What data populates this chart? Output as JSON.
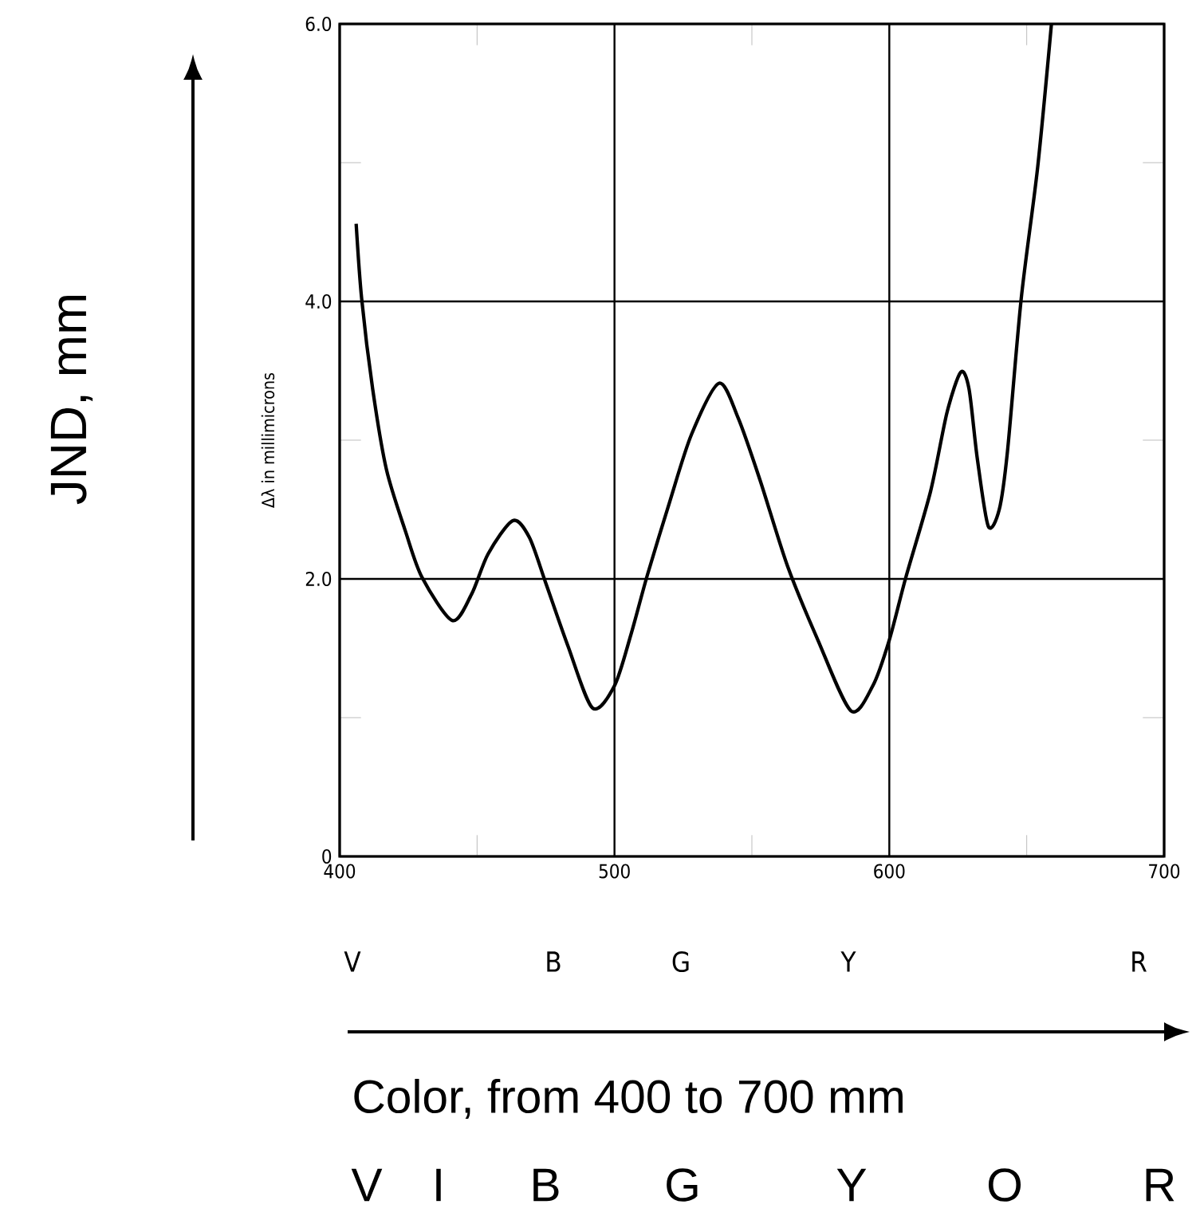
{
  "chart_data": {
    "type": "line",
    "ylabel": "Δλ in millimicrons",
    "x": [
      406,
      408,
      412,
      417,
      424,
      430,
      441,
      448,
      454,
      463,
      469,
      475,
      483,
      492,
      500,
      506,
      512,
      520,
      528,
      538,
      545,
      553,
      563,
      574,
      586,
      594,
      600,
      606,
      615,
      621,
      626,
      629,
      632,
      636,
      640,
      643,
      648,
      654,
      659
    ],
    "series": [
      {
        "color": "#000000",
        "values": [
          4.56,
          4.02,
          3.37,
          2.79,
          2.34,
          2.01,
          1.7,
          1.89,
          2.18,
          2.42,
          2.3,
          1.97,
          1.52,
          1.07,
          1.23,
          1.6,
          2.03,
          2.55,
          3.04,
          3.41,
          3.16,
          2.71,
          2.09,
          1.56,
          1.05,
          1.23,
          1.56,
          2.01,
          2.63,
          3.2,
          3.49,
          3.37,
          2.87,
          2.38,
          2.5,
          2.92,
          4.02,
          4.97,
          6.0
        ]
      }
    ],
    "xlim": [
      400,
      700
    ],
    "ylim": [
      0,
      6
    ],
    "xticks": [
      400,
      {
        "value": 450,
        "label": null
      },
      500,
      {
        "value": 550,
        "label": null
      },
      600,
      {
        "value": 650,
        "label": null
      },
      700
    ],
    "yticks": [
      {
        "value": 0,
        "label": "0"
      },
      {
        "value": 1,
        "label": null
      },
      {
        "value": 2,
        "label": "2.0"
      },
      {
        "value": 3,
        "label": null
      },
      {
        "value": 4,
        "label": "4.0"
      },
      {
        "value": 5,
        "label": null
      },
      {
        "value": 6,
        "label": "6.0"
      }
    ],
    "grid": true,
    "marker": "none",
    "line_style": "solid",
    "annotations": [
      "V",
      "B",
      "G",
      "Y",
      "R",
      "V",
      "I",
      "B",
      "G",
      "Y",
      "O",
      "R",
      "JND, mm",
      "Color, from 400 to 700 mm"
    ]
  }
}
